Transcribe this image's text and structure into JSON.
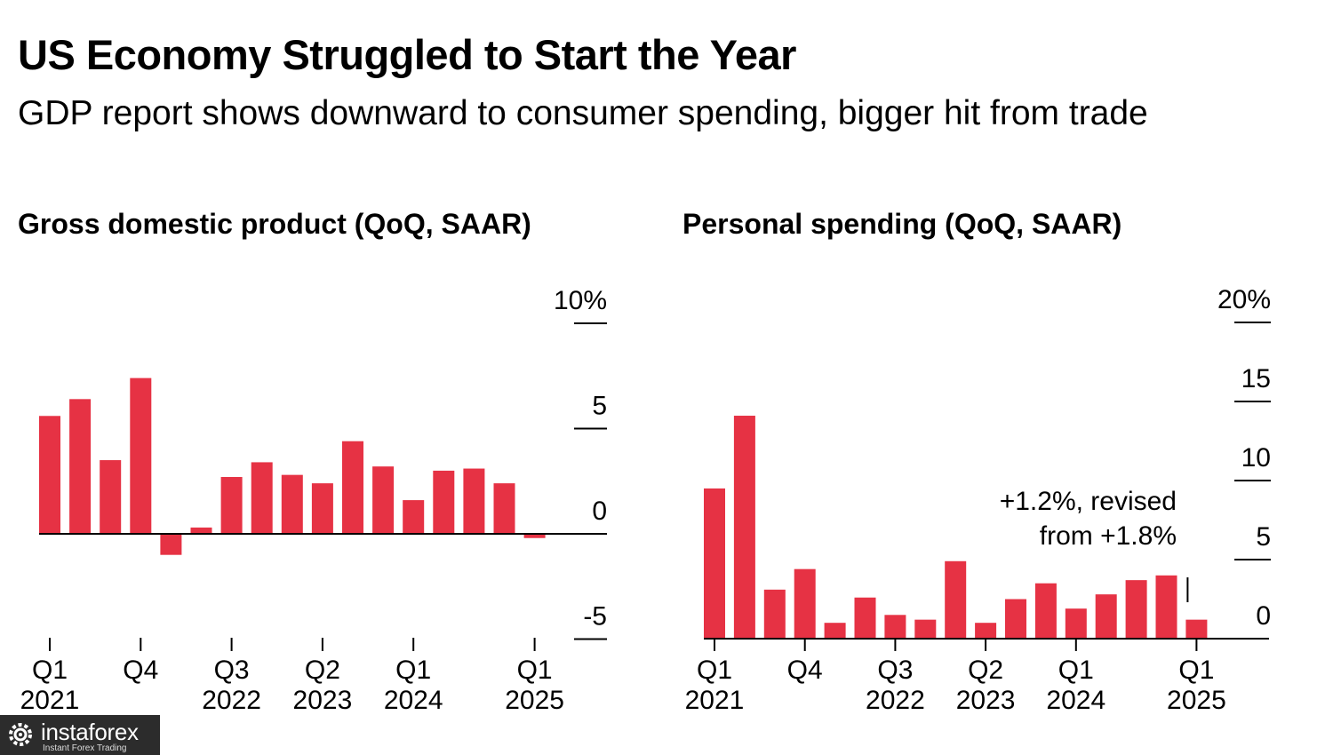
{
  "title": "US Economy Struggled to Start the Year",
  "subtitle": "GDP report shows downward to consumer spending, bigger hit from trade",
  "colors": {
    "bar": "#e63244",
    "axis": "#000000",
    "text": "#000000"
  },
  "chart_data": [
    {
      "type": "bar",
      "title": "Gross domestic product (QoQ, SAAR)",
      "x": [
        "Q1 2021",
        "Q2 2021",
        "Q3 2021",
        "Q4 2021",
        "Q1 2022",
        "Q2 2022",
        "Q3 2022",
        "Q4 2022",
        "Q1 2023",
        "Q2 2023",
        "Q3 2023",
        "Q4 2023",
        "Q1 2024",
        "Q2 2024",
        "Q3 2024",
        "Q4 2024",
        "Q1 2025"
      ],
      "values": [
        5.6,
        6.4,
        3.5,
        7.4,
        -1.0,
        0.3,
        2.7,
        3.4,
        2.8,
        2.4,
        4.4,
        3.2,
        1.6,
        3.0,
        3.1,
        2.4,
        -0.2
      ],
      "ylim": [
        -5,
        10
      ],
      "yticks": [
        {
          "value": 10,
          "label": "10%"
        },
        {
          "value": 5,
          "label": "5"
        },
        {
          "value": 0,
          "label": "0"
        },
        {
          "value": -5,
          "label": "-5"
        }
      ],
      "xticks": [
        {
          "index": 0,
          "line1": "Q1",
          "line2": "2021"
        },
        {
          "index": 3,
          "line1": "Q4",
          "line2": ""
        },
        {
          "index": 6,
          "line1": "Q3",
          "line2": "2022"
        },
        {
          "index": 9,
          "line1": "Q2",
          "line2": "2023"
        },
        {
          "index": 12,
          "line1": "Q1",
          "line2": "2024"
        },
        {
          "index": 16,
          "line1": "Q1",
          "line2": "2025"
        }
      ],
      "xlabel": "",
      "ylabel": "",
      "grid": false,
      "legend": "none"
    },
    {
      "type": "bar",
      "title": "Personal spending (QoQ, SAAR)",
      "x": [
        "Q1 2021",
        "Q2 2021",
        "Q3 2021",
        "Q4 2021",
        "Q1 2022",
        "Q2 2022",
        "Q3 2022",
        "Q4 2022",
        "Q1 2023",
        "Q2 2023",
        "Q3 2023",
        "Q4 2023",
        "Q1 2024",
        "Q2 2024",
        "Q3 2024",
        "Q4 2024",
        "Q1 2025"
      ],
      "values": [
        9.5,
        14.1,
        3.1,
        4.4,
        1.0,
        2.6,
        1.5,
        1.2,
        4.9,
        1.0,
        2.5,
        3.5,
        1.9,
        2.8,
        3.7,
        4.0,
        1.2
      ],
      "ylim": [
        0,
        20
      ],
      "yticks": [
        {
          "value": 20,
          "label": "20%"
        },
        {
          "value": 15,
          "label": "15"
        },
        {
          "value": 10,
          "label": "10"
        },
        {
          "value": 5,
          "label": "5"
        },
        {
          "value": 0,
          "label": "0"
        }
      ],
      "xticks": [
        {
          "index": 0,
          "line1": "Q1",
          "line2": "2021"
        },
        {
          "index": 3,
          "line1": "Q4",
          "line2": ""
        },
        {
          "index": 6,
          "line1": "Q3",
          "line2": "2022"
        },
        {
          "index": 9,
          "line1": "Q2",
          "line2": "2023"
        },
        {
          "index": 12,
          "line1": "Q1",
          "line2": "2024"
        },
        {
          "index": 16,
          "line1": "Q1",
          "line2": "2025"
        }
      ],
      "annotation": {
        "index": 16,
        "line1": "+1.2%, revised",
        "line2": "from +1.8%"
      },
      "xlabel": "",
      "ylabel": "",
      "grid": false,
      "legend": "none"
    }
  ],
  "watermark": {
    "brand": "instaforex",
    "tagline": "Instant Forex Trading",
    "icon": "gear-logo-icon"
  }
}
